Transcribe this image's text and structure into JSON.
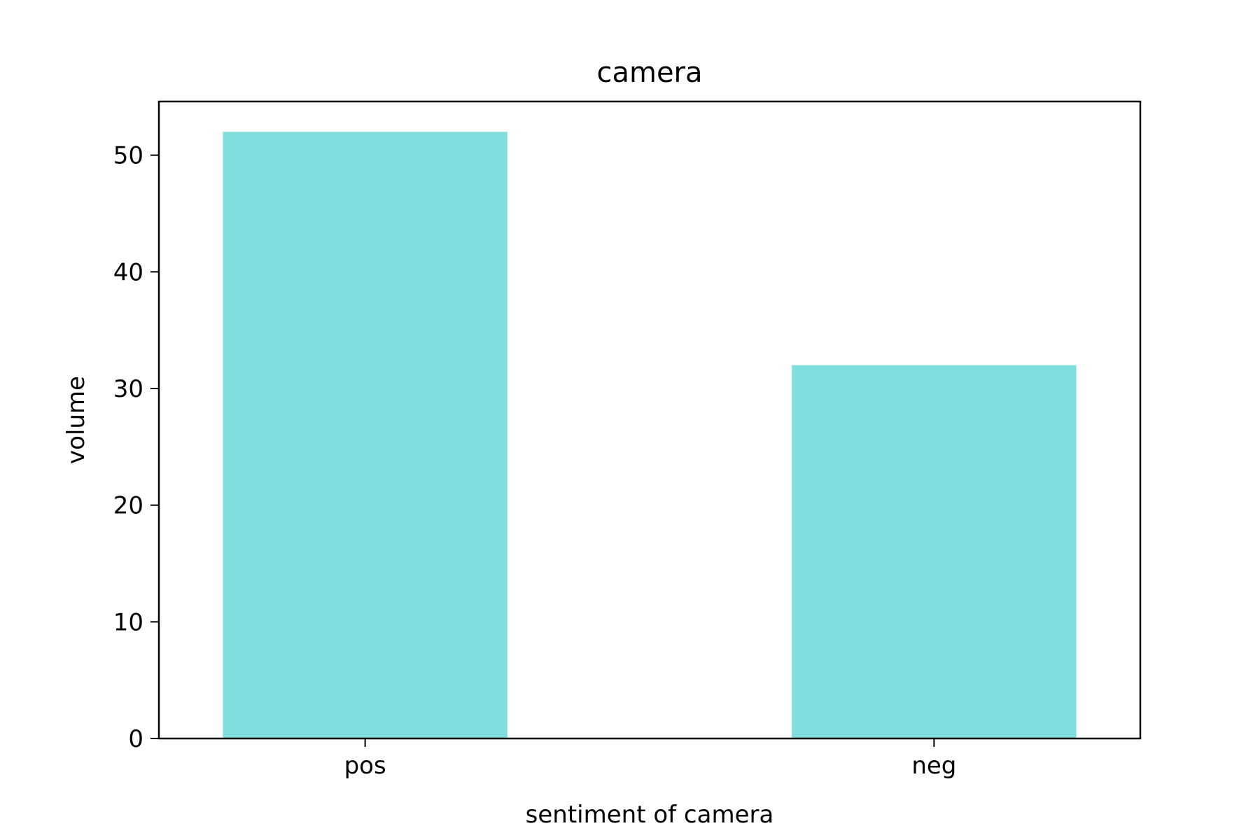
{
  "chart_data": {
    "type": "bar",
    "title": "camera",
    "xlabel": "sentiment of camera",
    "ylabel": "volume",
    "categories": [
      "pos",
      "neg"
    ],
    "values": [
      52,
      32
    ],
    "ylim": [
      0,
      54.6
    ],
    "yticks": [
      0,
      10,
      20,
      30,
      40,
      50
    ],
    "grid": false,
    "bar_color": "#80DFDE"
  }
}
